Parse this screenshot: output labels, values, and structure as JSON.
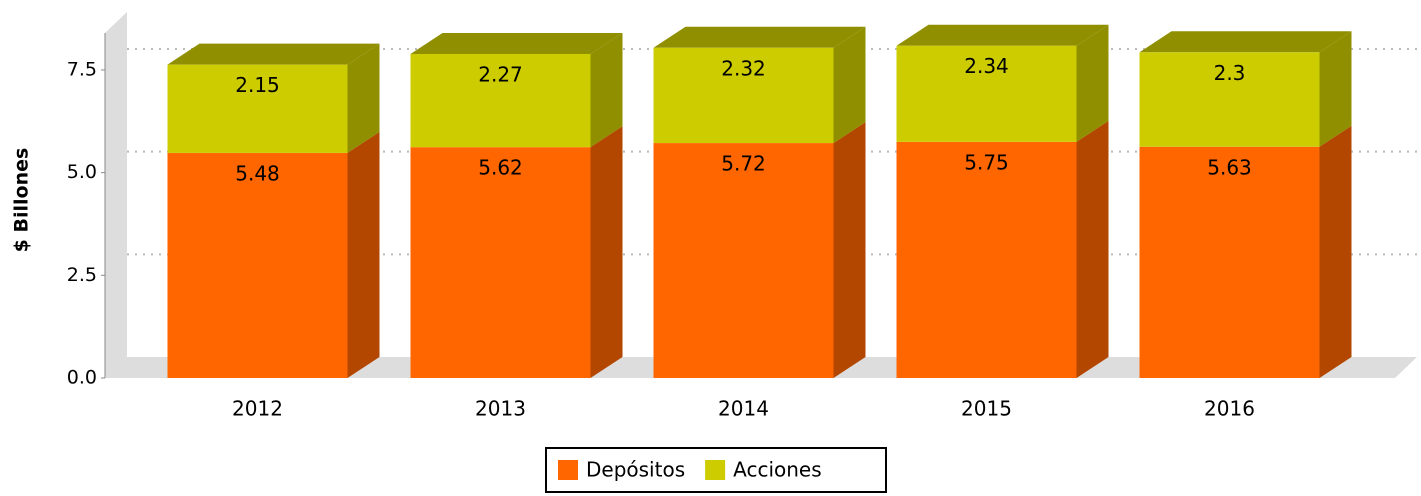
{
  "chart_data": {
    "type": "bar3d_stacked",
    "ylabel": "$ Billones",
    "categories": [
      "2012",
      "2013",
      "2014",
      "2015",
      "2016"
    ],
    "series": [
      {
        "name": "Depósitos",
        "color": "#ff6600",
        "values": [
          5.48,
          5.62,
          5.72,
          5.75,
          5.63
        ]
      },
      {
        "name": "Acciones",
        "color": "#cccc00",
        "values": [
          2.15,
          2.27,
          2.32,
          2.34,
          2.3
        ]
      }
    ],
    "ylim": [
      0,
      8.4
    ],
    "yticks": [
      {
        "value": 0,
        "label": "0.0"
      },
      2.5,
      {
        "value": 5,
        "label": "5.0"
      },
      7.5
    ],
    "grid": true,
    "legend": "bottom"
  }
}
